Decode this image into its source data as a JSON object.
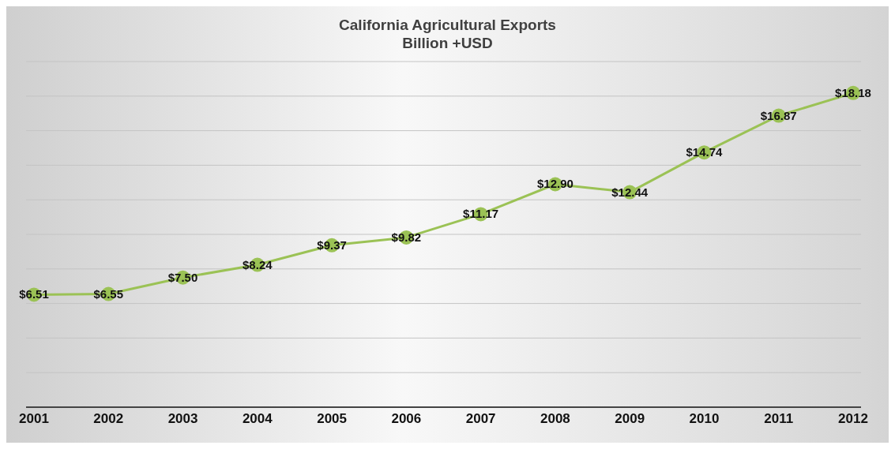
{
  "chart_data": {
    "type": "line",
    "title": "California Agricultural Exports",
    "subtitle": "Billion +USD",
    "categories": [
      "2001",
      "2002",
      "2003",
      "2004",
      "2005",
      "2006",
      "2007",
      "2008",
      "2009",
      "2010",
      "2011",
      "2012"
    ],
    "series": [
      {
        "color": "#9bc255",
        "values": [
          6.51,
          6.55,
          7.5,
          8.24,
          9.37,
          9.82,
          11.17,
          12.9,
          12.44,
          14.74,
          16.87,
          18.18
        ],
        "value_labels": [
          "$6.51",
          "$6.55",
          "$7.50",
          "$8.24",
          "$9.37",
          "$9.82",
          "$11.17",
          "$12.90",
          "$12.44",
          "$14.74",
          "$16.87",
          "$18.18"
        ]
      }
    ],
    "ylim": [
      0,
      20
    ],
    "yticks": [
      {
        "value": 0,
        "label": null
      },
      {
        "value": 2,
        "label": null
      },
      {
        "value": 4,
        "label": null
      },
      {
        "value": 6,
        "label": null
      },
      {
        "value": 8,
        "label": null
      },
      {
        "value": 10,
        "label": null
      },
      {
        "value": 12,
        "label": null
      },
      {
        "value": 14,
        "label": null
      },
      {
        "value": 16,
        "label": null
      },
      {
        "value": 18,
        "label": null
      },
      {
        "value": 20,
        "label": null
      }
    ],
    "grid": "y",
    "tick_labels": "x",
    "marker": "circle"
  }
}
